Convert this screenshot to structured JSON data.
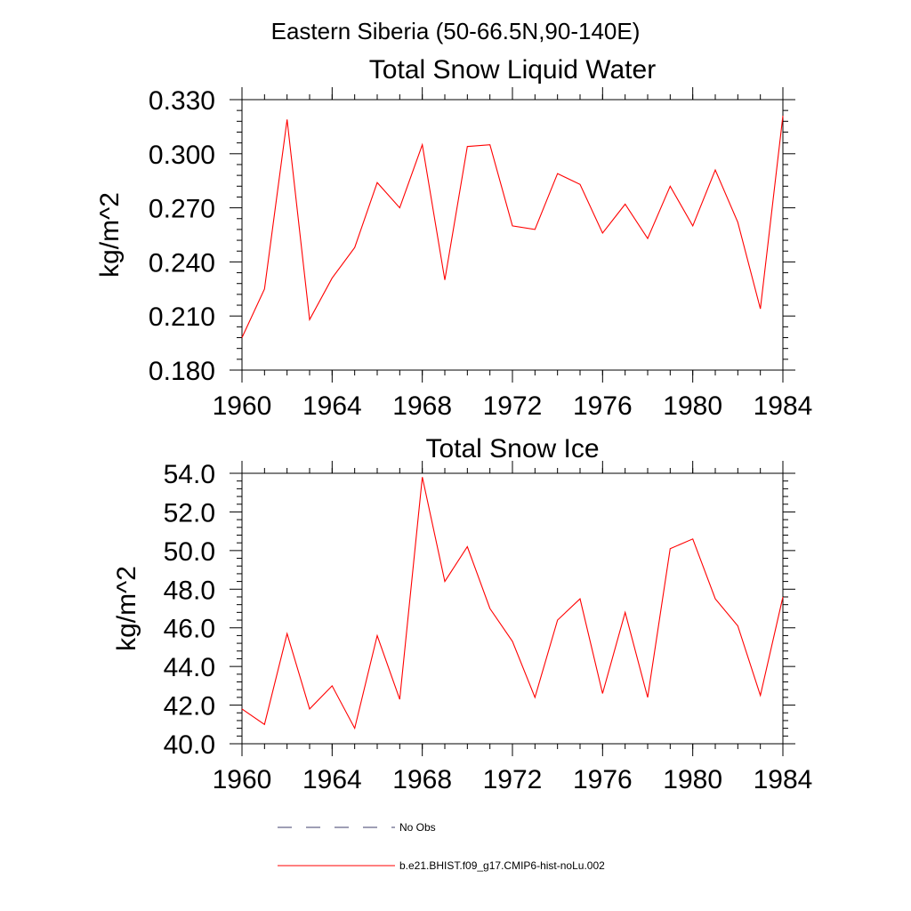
{
  "figure": {
    "suptitle": "Eastern Siberia (50-66.5N,90-140E)"
  },
  "legend": {
    "entries": [
      {
        "label": "No Obs",
        "color": "#3d3d6b",
        "dash": "dashed"
      },
      {
        "label": "b.e21.BHIST.f09_g17.CMIP6-hist-noLu.002",
        "color": "#ff0000",
        "dash": "solid"
      }
    ]
  },
  "chart_data": [
    {
      "type": "line",
      "title": "Total Snow Liquid Water",
      "ylabel": "kg/m^2",
      "xlabel": "",
      "xlim": [
        1960,
        1984
      ],
      "ylim": [
        0.18,
        0.33
      ],
      "xticks": [
        1960,
        1964,
        1968,
        1972,
        1976,
        1980,
        1984
      ],
      "xtick_labels": [
        "1960",
        "1964",
        "1968",
        "1972",
        "1976",
        "1980",
        "1984"
      ],
      "yticks": [
        0.18,
        0.21,
        0.24,
        0.27,
        0.3,
        0.33
      ],
      "ytick_labels": [
        "0.180",
        "0.210",
        "0.240",
        "0.270",
        "0.300",
        "0.330"
      ],
      "grid": false,
      "series": [
        {
          "name": "b.e21.BHIST.f09_g17.CMIP6-hist-noLu.002",
          "color": "#ff0000",
          "x": [
            1960,
            1961,
            1962,
            1963,
            1964,
            1965,
            1966,
            1967,
            1968,
            1969,
            1970,
            1971,
            1972,
            1973,
            1974,
            1975,
            1976,
            1977,
            1978,
            1979,
            1980,
            1981,
            1982,
            1983,
            1984
          ],
          "values": [
            0.198,
            0.225,
            0.319,
            0.208,
            0.231,
            0.248,
            0.284,
            0.27,
            0.305,
            0.23,
            0.304,
            0.305,
            0.26,
            0.258,
            0.289,
            0.283,
            0.256,
            0.272,
            0.253,
            0.282,
            0.26,
            0.291,
            0.262,
            0.214,
            0.321
          ]
        }
      ]
    },
    {
      "type": "line",
      "title": "Total Snow Ice",
      "ylabel": "kg/m^2",
      "xlabel": "",
      "xlim": [
        1960,
        1984
      ],
      "ylim": [
        40.0,
        54.0
      ],
      "xticks": [
        1960,
        1964,
        1968,
        1972,
        1976,
        1980,
        1984
      ],
      "xtick_labels": [
        "1960",
        "1964",
        "1968",
        "1972",
        "1976",
        "1980",
        "1984"
      ],
      "yticks": [
        40,
        42,
        44,
        46,
        48,
        50,
        52,
        54
      ],
      "ytick_labels": [
        "40.0",
        "42.0",
        "44.0",
        "46.0",
        "48.0",
        "50.0",
        "52.0",
        "54.0"
      ],
      "grid": false,
      "series": [
        {
          "name": "b.e21.BHIST.f09_g17.CMIP6-hist-noLu.002",
          "color": "#ff0000",
          "x": [
            1960,
            1961,
            1962,
            1963,
            1964,
            1965,
            1966,
            1967,
            1968,
            1969,
            1970,
            1971,
            1972,
            1973,
            1974,
            1975,
            1976,
            1977,
            1978,
            1979,
            1980,
            1981,
            1982,
            1983,
            1984
          ],
          "values": [
            41.8,
            41.0,
            45.7,
            41.8,
            43.0,
            40.8,
            45.6,
            42.3,
            53.8,
            48.4,
            50.2,
            47.0,
            45.3,
            42.4,
            46.4,
            47.5,
            42.6,
            46.8,
            42.4,
            50.1,
            50.6,
            47.5,
            46.1,
            42.5,
            47.6
          ]
        }
      ]
    }
  ]
}
